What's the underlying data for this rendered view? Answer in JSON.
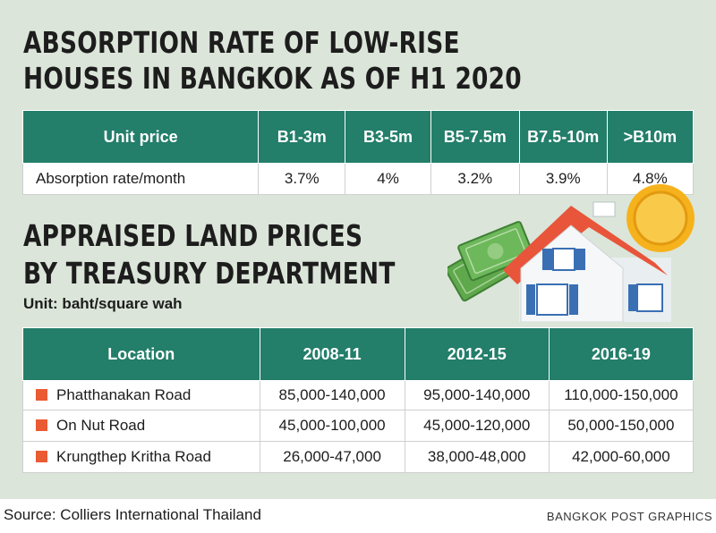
{
  "headline1": {
    "line1": "ABSORPTION RATE OF LOW-RISE",
    "line2": "HOUSES IN BANGKOK AS OF H1 2020"
  },
  "absorption_table": {
    "row_header": "Unit price",
    "columns": [
      "B1-3m",
      "B3-5m",
      "B5-7.5m",
      "B7.5-10m",
      ">B10m"
    ],
    "row_label": "Absorption rate/month",
    "values": [
      "3.7%",
      "4%",
      "3.2%",
      "3.9%",
      "4.8%"
    ]
  },
  "headline2": {
    "line1": "APPRAISED LAND PRICES",
    "line2": "BY TREASURY DEPARTMENT"
  },
  "unit_label": "Unit: baht/square wah",
  "land_table": {
    "headers": [
      "Location",
      "2008-11",
      "2012-15",
      "2016-19"
    ],
    "rows": [
      {
        "location": "Phatthanakan Road",
        "values": [
          "85,000-140,000",
          "95,000-140,000",
          "110,000-150,000"
        ]
      },
      {
        "location": "On Nut Road",
        "values": [
          "45,000-100,000",
          "45,000-120,000",
          "50,000-150,000"
        ]
      },
      {
        "location": "Krungthep Kritha Road",
        "values": [
          "26,000-47,000",
          "38,000-48,000",
          "42,000-60,000"
        ]
      }
    ]
  },
  "source": "Source: Colliers International Thailand",
  "credit": "BANGKOK POST GRAPHICS",
  "colors": {
    "panel": "#dbe5d9",
    "header_green": "#237e6a",
    "marker_orange": "#ea5a33",
    "roof": "#e8553a",
    "coin": "#f6b21c",
    "cash": "#5fa84c",
    "window_blue": "#3a6fb4"
  },
  "illustration": [
    "house-icon",
    "coin-icon",
    "banknotes-icon"
  ]
}
